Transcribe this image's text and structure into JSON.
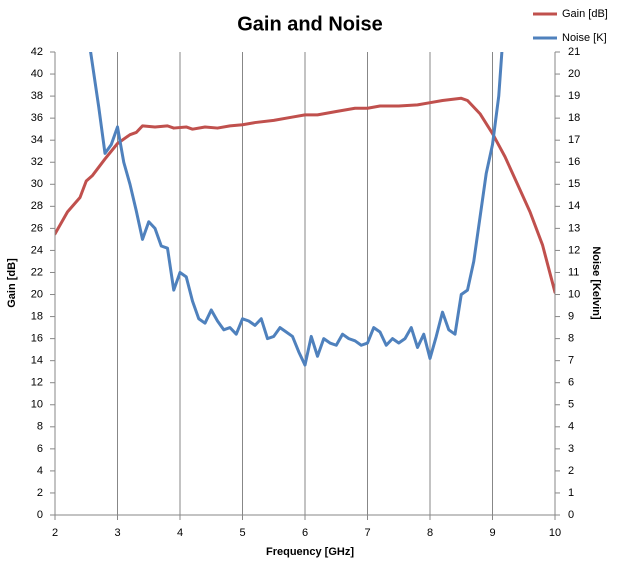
{
  "chart_data": {
    "type": "line",
    "title": "Gain and Noise",
    "x_label": "Frequency [GHz]",
    "y_label": "Gain [dB]",
    "y2_label": "Noise [Kelvin]",
    "xlim": [
      2,
      10
    ],
    "xticks": [
      2,
      3,
      4,
      5,
      6,
      7,
      8,
      9,
      10
    ],
    "ylim": [
      0,
      42
    ],
    "yticks": [
      0,
      2,
      4,
      6,
      8,
      10,
      12,
      14,
      16,
      18,
      20,
      22,
      24,
      26,
      28,
      30,
      32,
      34,
      36,
      38,
      40,
      42
    ],
    "y2lim": [
      0,
      21
    ],
    "y2ticks": [
      0,
      1,
      2,
      3,
      4,
      5,
      6,
      7,
      8,
      9,
      10,
      11,
      12,
      13,
      14,
      15,
      16,
      17,
      18,
      19,
      20,
      21
    ],
    "grid": "x",
    "legend": "top-right",
    "series": [
      {
        "name": "Gain [dB]",
        "color": "#c0504d",
        "x": [
          2,
          2.2,
          2.4,
          2.5,
          2.6,
          2.8,
          3.0,
          3.2,
          3.3,
          3.4,
          3.6,
          3.8,
          3.9,
          4.1,
          4.2,
          4.4,
          4.6,
          4.8,
          5.0,
          5.2,
          5.5,
          5.8,
          6.0,
          6.2,
          6.5,
          6.8,
          7.0,
          7.2,
          7.5,
          7.8,
          8.0,
          8.2,
          8.5,
          8.6,
          8.8,
          9.0,
          9.2,
          9.4,
          9.6,
          9.8,
          10.0
        ],
        "values": [
          25.5,
          27.5,
          28.8,
          30.3,
          30.8,
          32.3,
          33.7,
          34.5,
          34.7,
          35.3,
          35.2,
          35.3,
          35.1,
          35.2,
          35.0,
          35.2,
          35.1,
          35.3,
          35.4,
          35.6,
          35.8,
          36.1,
          36.3,
          36.3,
          36.6,
          36.9,
          36.9,
          37.1,
          37.1,
          37.2,
          37.4,
          37.6,
          37.8,
          37.6,
          36.4,
          34.6,
          32.5,
          30.0,
          27.5,
          24.5,
          20.2
        ]
      },
      {
        "name": "Noise [K]",
        "color": "#4f81bd",
        "axis": "y2",
        "x": [
          2.57,
          2.7,
          2.8,
          2.9,
          3.0,
          3.1,
          3.2,
          3.3,
          3.4,
          3.5,
          3.6,
          3.7,
          3.8,
          3.9,
          4.0,
          4.1,
          4.2,
          4.3,
          4.4,
          4.5,
          4.6,
          4.7,
          4.8,
          4.9,
          5.0,
          5.1,
          5.2,
          5.3,
          5.4,
          5.5,
          5.6,
          5.7,
          5.8,
          5.9,
          6.0,
          6.1,
          6.2,
          6.3,
          6.4,
          6.5,
          6.6,
          6.7,
          6.8,
          6.9,
          7.0,
          7.1,
          7.2,
          7.3,
          7.4,
          7.5,
          7.6,
          7.7,
          7.8,
          7.9,
          8.0,
          8.1,
          8.2,
          8.3,
          8.4,
          8.5,
          8.6,
          8.7,
          8.8,
          8.9,
          9.0,
          9.1,
          9.15
        ],
        "values": [
          21,
          18.5,
          16.4,
          16.8,
          17.6,
          16.0,
          15.0,
          13.8,
          12.5,
          13.3,
          13.0,
          12.2,
          12.1,
          10.2,
          11.0,
          10.8,
          9.7,
          8.9,
          8.7,
          9.3,
          8.8,
          8.4,
          8.5,
          8.2,
          8.9,
          8.8,
          8.6,
          8.9,
          8.0,
          8.1,
          8.5,
          8.3,
          8.1,
          7.4,
          6.8,
          8.1,
          7.2,
          8.0,
          7.8,
          7.7,
          8.2,
          8.0,
          7.9,
          7.7,
          7.8,
          8.5,
          8.3,
          7.7,
          8.0,
          7.8,
          8.0,
          8.5,
          7.6,
          8.2,
          7.1,
          8.1,
          9.2,
          8.4,
          8.2,
          10.0,
          10.2,
          11.5,
          13.5,
          15.5,
          16.8,
          19.0,
          21
        ]
      }
    ]
  }
}
